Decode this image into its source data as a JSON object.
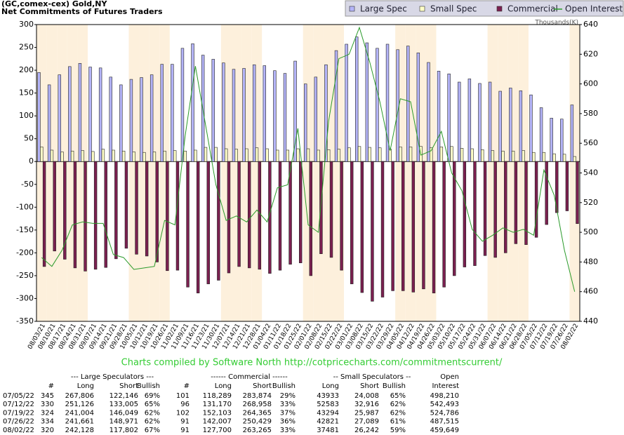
{
  "chart_data": {
    "type": "bar",
    "title": "(GC,comex-cex) Gold,NY",
    "subtitle": "Net Commitments of Futures Traders",
    "y2label": "Thousands(K)",
    "credit": "Charts compiled by Software North  http://cotpricecharts.com/commitmentscurrent/",
    "categories": [
      "08/03/21",
      "08/10/21",
      "08/17/21",
      "08/24/21",
      "08/31/21",
      "09/07/21",
      "09/14/21",
      "09/21/21",
      "09/28/21",
      "10/05/21",
      "10/12/21",
      "10/19/21",
      "10/26/21",
      "11/02/21",
      "11/09/21",
      "11/16/21",
      "11/23/21",
      "11/30/21",
      "12/07/21",
      "12/14/21",
      "12/21/21",
      "12/28/21",
      "01/04/22",
      "01/11/22",
      "01/18/22",
      "01/25/22",
      "02/01/22",
      "02/08/22",
      "02/15/22",
      "02/22/22",
      "03/01/22",
      "03/08/22",
      "03/15/22",
      "03/22/22",
      "03/29/22",
      "04/05/22",
      "04/12/22",
      "04/19/22",
      "04/26/22",
      "05/03/22",
      "05/10/22",
      "05/17/22",
      "05/24/22",
      "05/31/22",
      "06/07/22",
      "06/14/22",
      "06/21/22",
      "06/28/22",
      "07/05/22",
      "07/12/22",
      "07/19/22",
      "07/26/22",
      "08/02/22"
    ],
    "series": [
      {
        "name": "Large Spec",
        "color": "#b4b4f8",
        "values": [
          195,
          168,
          190,
          208,
          215,
          207,
          205,
          185,
          168,
          180,
          184,
          190,
          213,
          213,
          248,
          258,
          233,
          224,
          216,
          202,
          204,
          212,
          210,
          199,
          193,
          220,
          170,
          185,
          212,
          243,
          257,
          273,
          260,
          248,
          257,
          245,
          253,
          238,
          217,
          198,
          192,
          174,
          181,
          171,
          174,
          154,
          161,
          155,
          146,
          118,
          95,
          93,
          124
        ]
      },
      {
        "name": "Small Spec",
        "color": "#ffffc8",
        "values": [
          32,
          25,
          21,
          23,
          24,
          22,
          27,
          25,
          23,
          21,
          20,
          21,
          23,
          24,
          23,
          25,
          31,
          31,
          28,
          27,
          28,
          30,
          28,
          25,
          25,
          28,
          28,
          25,
          26,
          27,
          30,
          33,
          31,
          30,
          27,
          32,
          32,
          33,
          30,
          32,
          33,
          29,
          28,
          26,
          24,
          23,
          23,
          24,
          20,
          20,
          17,
          16,
          11
        ]
      },
      {
        "name": "Commercial",
        "color": "#7b2050",
        "values": [
          -230,
          -196,
          -214,
          -233,
          -240,
          -236,
          -232,
          -213,
          -190,
          -203,
          -207,
          -220,
          -239,
          -238,
          -275,
          -288,
          -268,
          -260,
          -244,
          -230,
          -233,
          -236,
          -245,
          -238,
          -225,
          -222,
          -250,
          -202,
          -210,
          -238,
          -268,
          -287,
          -306,
          -297,
          -283,
          -283,
          -286,
          -279,
          -288,
          -275,
          -250,
          -231,
          -228,
          -206,
          -210,
          -200,
          -180,
          -182,
          -166,
          -138,
          -112,
          -108,
          -136
        ]
      },
      {
        "name": "Open Interest",
        "color": "#2a9a2a",
        "axis": "y2",
        "type": "line",
        "values": [
          483,
          477,
          488,
          505,
          507,
          506,
          506,
          485,
          483,
          475,
          476,
          477,
          508,
          505,
          565,
          612,
          572,
          532,
          508,
          511,
          507,
          515,
          507,
          530,
          532,
          570,
          505,
          500,
          575,
          617,
          620,
          638,
          615,
          588,
          555,
          590,
          588,
          552,
          555,
          568,
          540,
          528,
          502,
          494,
          498,
          503,
          500,
          502,
          498,
          542,
          525,
          488,
          460
        ]
      }
    ],
    "ylim": [
      -350,
      300
    ],
    "yticks": [
      -350,
      -300,
      -250,
      -200,
      -150,
      -100,
      -50,
      0,
      50,
      100,
      150,
      200,
      250,
      300
    ],
    "y2lim": [
      440,
      640
    ],
    "y2ticks": [
      440,
      460,
      480,
      500,
      520,
      540,
      560,
      580,
      600,
      620,
      640
    ],
    "grid": false,
    "legend": "top-right"
  },
  "table": {
    "group_headers": [
      "--- Large Speculators ---",
      "------ Commercial ------",
      "-- Small Speculators --",
      "Open"
    ],
    "column_headers": [
      "#",
      "Long",
      "Short",
      "Bullish",
      "#",
      "Long",
      "Short",
      "Bullish",
      "Long",
      "Short",
      "Bullish",
      "Interest"
    ],
    "rows": [
      [
        "07/05/22",
        "345",
        "267,806",
        "122,146",
        "69%",
        "101",
        "118,289",
        "283,874",
        "29%",
        "43933",
        "24,008",
        "65%",
        "498,210"
      ],
      [
        "07/12/22",
        "330",
        "251,126",
        "133,005",
        "65%",
        "96",
        "131,170",
        "268,958",
        "33%",
        "52583",
        "32,916",
        "62%",
        "542,493"
      ],
      [
        "07/19/22",
        "324",
        "241,004",
        "146,049",
        "62%",
        "102",
        "152,103",
        "264,365",
        "37%",
        "43294",
        "25,987",
        "62%",
        "524,786"
      ],
      [
        "07/26/22",
        "334",
        "241,661",
        "148,971",
        "62%",
        "91",
        "142,007",
        "250,429",
        "36%",
        "42821",
        "27,089",
        "61%",
        "487,515"
      ],
      [
        "08/02/22",
        "320",
        "242,128",
        "117,802",
        "67%",
        "91",
        "127,700",
        "263,265",
        "33%",
        "37481",
        "26,242",
        "59%",
        "459,649"
      ]
    ]
  }
}
